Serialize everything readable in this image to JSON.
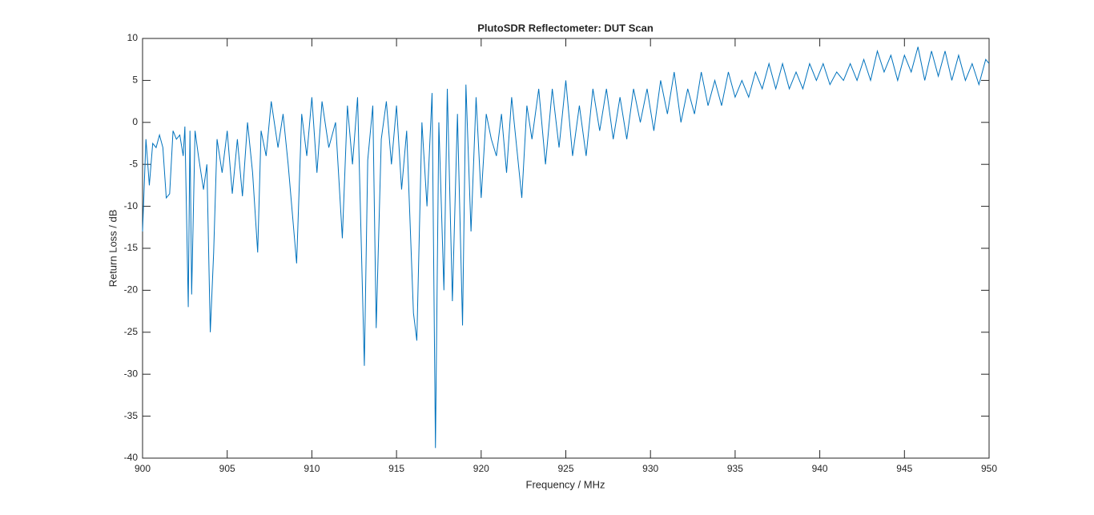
{
  "chart_data": {
    "type": "line",
    "title": "PlutoSDR Reflectometer: DUT Scan",
    "x_label": "Frequency / MHz",
    "y_label": "Return Loss / dB",
    "x": [
      900,
      900.2,
      900.4,
      900.6,
      900.8,
      901,
      901.2,
      901.4,
      901.6,
      901.8,
      902,
      902.2,
      902.4,
      902.5,
      902.7,
      902.8,
      902.9,
      903.1,
      903.3,
      903.6,
      903.8,
      904,
      904.2,
      904.4,
      904.7,
      905,
      905.3,
      905.6,
      905.9,
      906.2,
      906.5,
      906.8,
      907,
      907.3,
      907.6,
      908,
      908.3,
      908.6,
      909.1,
      909.4,
      909.7,
      910,
      910.3,
      910.6,
      911,
      911.4,
      911.8,
      912.1,
      912.4,
      912.7,
      913.1,
      913.3,
      913.6,
      913.8,
      914.1,
      914.4,
      914.7,
      915,
      915.3,
      915.6,
      916,
      916.2,
      916.5,
      916.8,
      917.1,
      917.3,
      917.5,
      917.8,
      918,
      918.3,
      918.6,
      918.9,
      919.1,
      919.4,
      919.7,
      920,
      920.3,
      920.6,
      920.9,
      921.2,
      921.5,
      921.8,
      922.1,
      922.4,
      922.7,
      923,
      923.4,
      923.8,
      924.2,
      924.6,
      925,
      925.4,
      925.8,
      926.2,
      926.6,
      927,
      927.4,
      927.8,
      928.2,
      928.6,
      929,
      929.4,
      929.8,
      930.2,
      930.6,
      931,
      931.4,
      931.8,
      932.2,
      932.6,
      933,
      933.4,
      933.8,
      934.2,
      934.6,
      935,
      935.4,
      935.8,
      936.2,
      936.6,
      937,
      937.4,
      937.8,
      938.2,
      938.6,
      939,
      939.4,
      939.8,
      940.2,
      940.6,
      941,
      941.4,
      941.8,
      942.2,
      942.6,
      943,
      943.4,
      943.8,
      944.2,
      944.6,
      945,
      945.4,
      945.8,
      946.2,
      946.6,
      947,
      947.4,
      947.8,
      948.2,
      948.6,
      949,
      949.4,
      949.8,
      950
    ],
    "series": [
      {
        "name": "Return Loss",
        "color": "#0072bd",
        "values": [
          -13,
          -2,
          -7.5,
          -2.5,
          -3,
          -1.5,
          -3,
          -9,
          -8.5,
          -1,
          -2,
          -1.5,
          -4,
          -0.5,
          -22,
          -1,
          -20.5,
          -1,
          -4,
          -8,
          -5,
          -25,
          -15.5,
          -2,
          -6,
          -1,
          -8.5,
          -2,
          -8.8,
          0,
          -6,
          -15.5,
          -1,
          -4,
          2.5,
          -3,
          1,
          -5,
          -16.8,
          1,
          -4,
          3,
          -6,
          2.5,
          -3,
          0,
          -13.8,
          2,
          -5,
          3,
          -29,
          -4.5,
          2,
          -24.5,
          -2,
          2.5,
          -5,
          2,
          -8,
          -1,
          -22.7,
          -26,
          0,
          -10,
          3.5,
          -38.8,
          0,
          -20,
          4,
          -21.3,
          1,
          -24.2,
          4.5,
          -13,
          3,
          -9,
          1,
          -2,
          -4,
          1,
          -6,
          3,
          -3,
          -9,
          2,
          -2,
          4,
          -5,
          4,
          -3,
          5,
          -4,
          2,
          -4,
          4,
          -1,
          4,
          -2,
          3,
          -2,
          4,
          0,
          4,
          -1,
          5,
          1,
          6,
          0,
          4,
          1,
          6,
          2,
          5,
          2,
          6,
          3,
          5,
          3,
          6,
          4,
          7,
          4,
          7,
          4,
          6,
          4,
          7,
          5,
          7,
          4.5,
          6,
          5,
          7,
          5,
          7.5,
          5,
          8.5,
          6,
          8,
          5,
          8,
          6,
          9,
          5,
          8.5,
          5.5,
          8.5,
          5,
          8,
          5,
          7,
          4.5,
          7.5,
          7
        ]
      }
    ],
    "xlim": [
      900,
      950
    ],
    "xticks": [
      900,
      905,
      910,
      915,
      920,
      925,
      930,
      935,
      940,
      945,
      950
    ],
    "ylim": [
      -40,
      10
    ],
    "yticks": [
      -40,
      -35,
      -30,
      -25,
      -20,
      -15,
      -10,
      -5,
      0,
      5,
      10
    ]
  }
}
